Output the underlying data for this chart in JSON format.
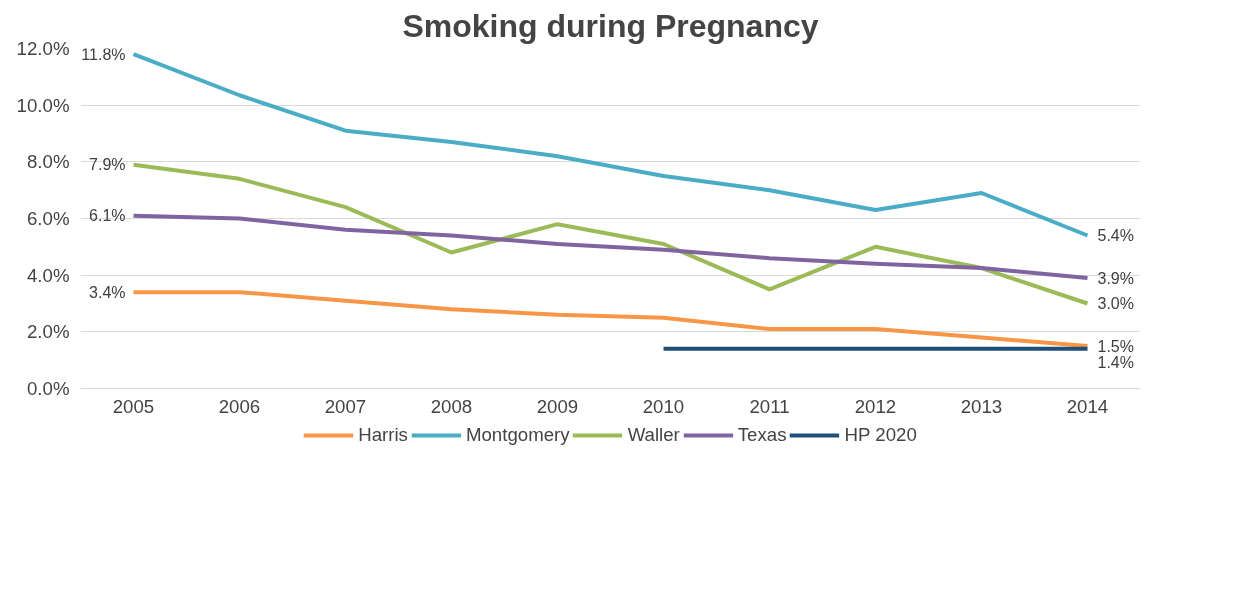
{
  "chart_data": {
    "type": "line",
    "title": "Smoking during Pregnancy",
    "categories": [
      "2005",
      "2006",
      "2007",
      "2008",
      "2009",
      "2010",
      "2011",
      "2012",
      "2013",
      "2014"
    ],
    "series": [
      {
        "name": "Harris",
        "color": "#f79646",
        "values": [
          3.4,
          3.4,
          3.1,
          2.8,
          2.6,
          2.5,
          2.1,
          2.1,
          1.8,
          1.5
        ],
        "value_labels": [
          "3.4%",
          null,
          null,
          null,
          null,
          null,
          null,
          null,
          null,
          "1.5%"
        ]
      },
      {
        "name": "Montgomery",
        "color": "#4bacc6",
        "values": [
          11.8,
          10.35,
          9.1,
          8.7,
          8.2,
          7.5,
          7.0,
          6.3,
          6.9,
          5.4
        ],
        "value_labels": [
          "11.8%",
          null,
          null,
          null,
          null,
          null,
          null,
          null,
          null,
          "5.4%"
        ]
      },
      {
        "name": "Waller",
        "color": "#9bbb59",
        "values": [
          7.9,
          7.4,
          6.4,
          4.8,
          5.8,
          5.1,
          3.5,
          5.0,
          4.25,
          3.0
        ],
        "value_labels": [
          "7.9%",
          null,
          null,
          null,
          null,
          null,
          null,
          null,
          null,
          "3.0%"
        ]
      },
      {
        "name": "Texas",
        "color": "#8064a2",
        "values": [
          6.1,
          6.0,
          5.6,
          5.4,
          5.1,
          4.9,
          4.6,
          4.4,
          4.25,
          3.9
        ],
        "value_labels": [
          "6.1%",
          null,
          null,
          null,
          null,
          null,
          null,
          null,
          null,
          "3.9%"
        ]
      },
      {
        "name": "HP 2020",
        "color": "#1f4e79",
        "values": [
          null,
          null,
          null,
          null,
          null,
          1.4,
          1.4,
          1.4,
          1.4,
          1.4
        ],
        "value_labels": [
          null,
          null,
          null,
          null,
          null,
          null,
          null,
          null,
          null,
          "1.4%"
        ]
      }
    ],
    "ylim": [
      0,
      12
    ],
    "yticks": [
      {
        "value": 0,
        "label": "0.0%"
      },
      {
        "value": 2,
        "label": "2.0%"
      },
      {
        "value": 4,
        "label": "4.0%"
      },
      {
        "value": 6,
        "label": "6.0%"
      },
      {
        "value": 8,
        "label": "8.0%"
      },
      {
        "value": 10,
        "label": "10.0%"
      },
      {
        "value": 12,
        "label": "12.0%"
      }
    ],
    "grid": "y",
    "legend": "bottom",
    "marker": "none",
    "line_style": "solid"
  }
}
